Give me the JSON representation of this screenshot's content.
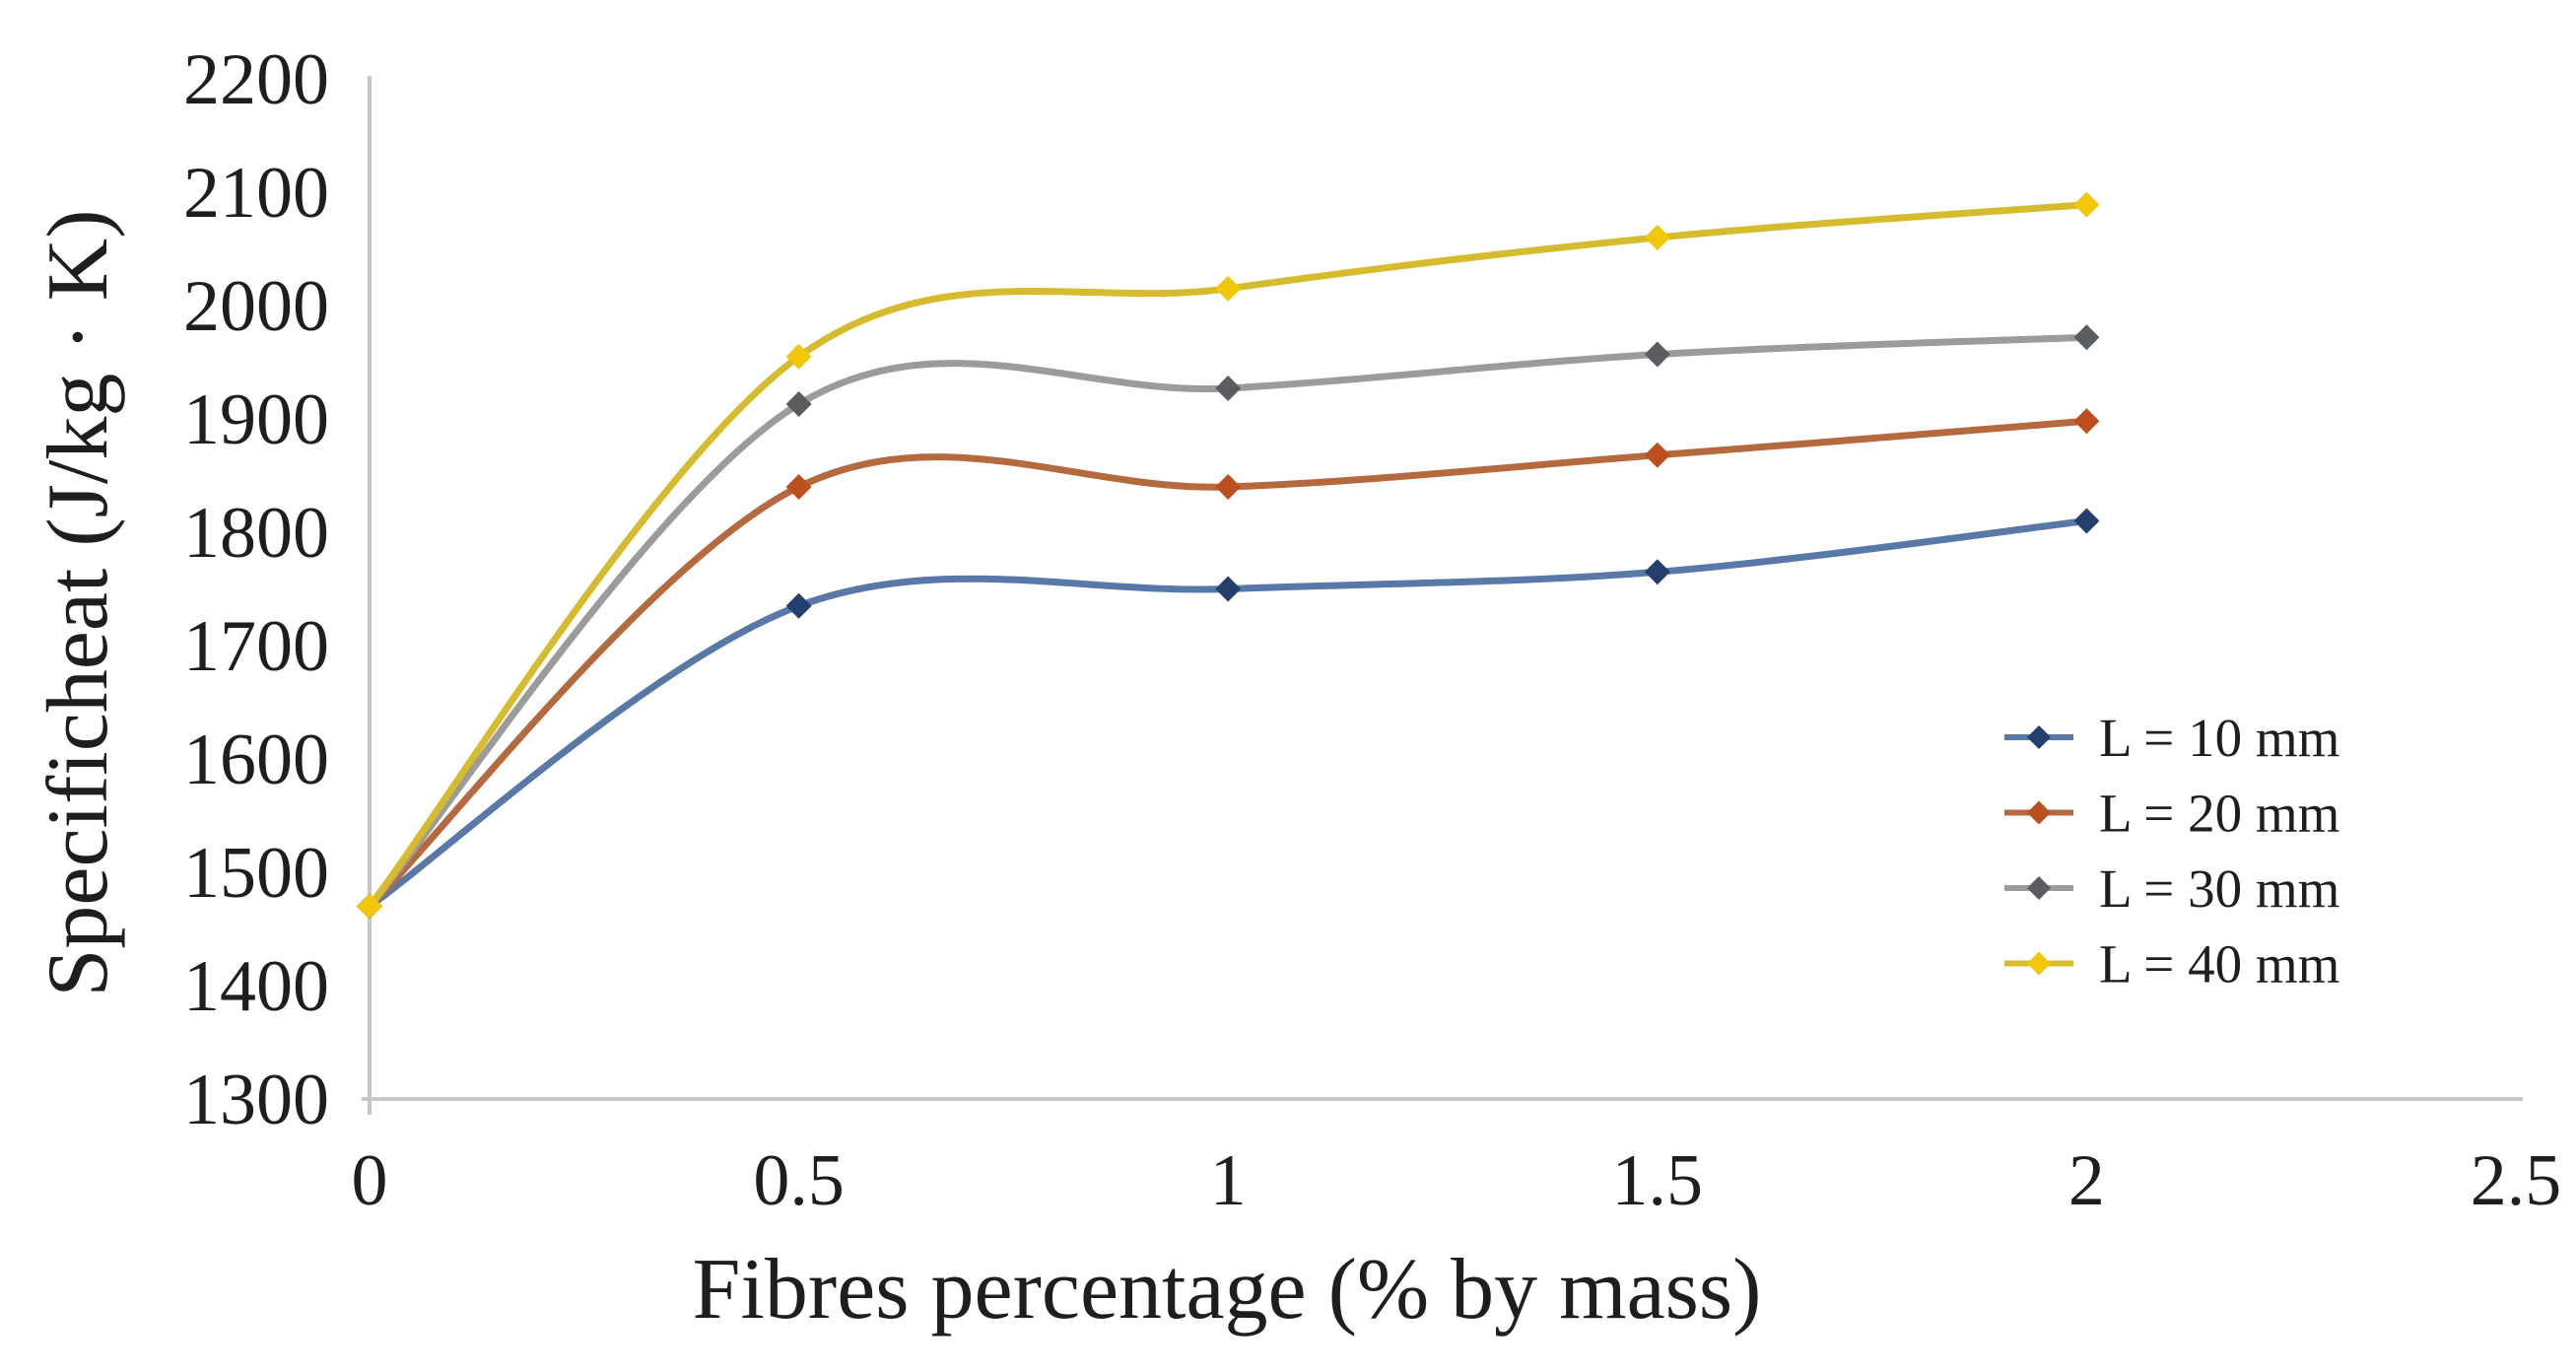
{
  "chart_data": {
    "type": "line",
    "title": "",
    "xlabel": "Fibres percentage (% by mass)",
    "ylabel": "Specificheat (J/kg · K)",
    "x": [
      0,
      0.5,
      1,
      1.5,
      2
    ],
    "series": [
      {
        "name": "L = 10 mm",
        "values": [
          1470,
          1735,
          1750,
          1765,
          1810
        ],
        "line_color": "#5878a8",
        "marker_color": "#233f6b"
      },
      {
        "name": "L = 20 mm",
        "values": [
          1470,
          1840,
          1840,
          1868,
          1898
        ],
        "line_color": "#b5693f",
        "marker_color": "#bc4f1e"
      },
      {
        "name": "L = 30 mm",
        "values": [
          1470,
          1913,
          1927,
          1957,
          1972
        ],
        "line_color": "#9b9b9b",
        "marker_color": "#595d61"
      },
      {
        "name": "L = 40 mm",
        "values": [
          1470,
          1955,
          2015,
          2060,
          2089
        ],
        "line_color": "#d5bb2d",
        "marker_color": "#f0c70a"
      }
    ],
    "xlim": [
      0,
      2.5
    ],
    "ylim": [
      1300,
      2200
    ],
    "x_tick_values": [
      0,
      0.5,
      1,
      1.5,
      2,
      2.5
    ],
    "x_tick_labels": [
      "0",
      "0.5",
      "1",
      "1.5",
      "2",
      "2.5"
    ],
    "y_tick_values": [
      2200,
      2100,
      2000,
      1900,
      1800,
      1700,
      1600,
      1500,
      1400,
      1300
    ],
    "y_tick_labels": [
      "2200",
      "2100",
      "2000",
      "1900",
      "1800",
      "1700",
      "1600",
      "1500",
      "1400",
      "1300"
    ],
    "grid": false,
    "smooth_lines": true,
    "marker_shape": "diamond",
    "legend_position": "inside-right",
    "colors": {
      "axis_line": "#c7c7c7",
      "text": "#1e1e1e",
      "background": "#ffffff"
    }
  }
}
